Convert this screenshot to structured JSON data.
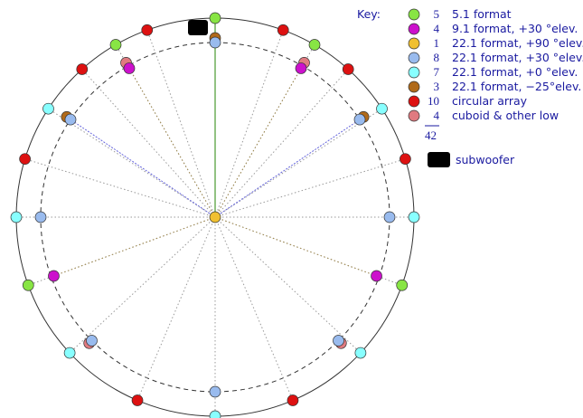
{
  "key_title": "Key:",
  "legend": [
    {
      "color": "#88e544",
      "count": 5,
      "label": "5.1 format"
    },
    {
      "color": "#cc11cc",
      "count": 4,
      "label": "9.1 format, +30 °elev."
    },
    {
      "color": "#f0c030",
      "count": 1,
      "label": "22.1 format, +90 °elev."
    },
    {
      "color": "#99bbee",
      "count": 8,
      "label": "22.1 format, +30 °elev."
    },
    {
      "color": "#88ffff",
      "count": 7,
      "label": "22.1 format, +0 °elev."
    },
    {
      "color": "#b06a1a",
      "count": 3,
      "label": "22.1 format, −25°elev."
    },
    {
      "color": "#dd1111",
      "count": 10,
      "label": "circular array"
    },
    {
      "color": "#e07a80",
      "count": 4,
      "label": "cuboid & other low"
    }
  ],
  "total": 42,
  "subwoofer": "subwoofer"
}
